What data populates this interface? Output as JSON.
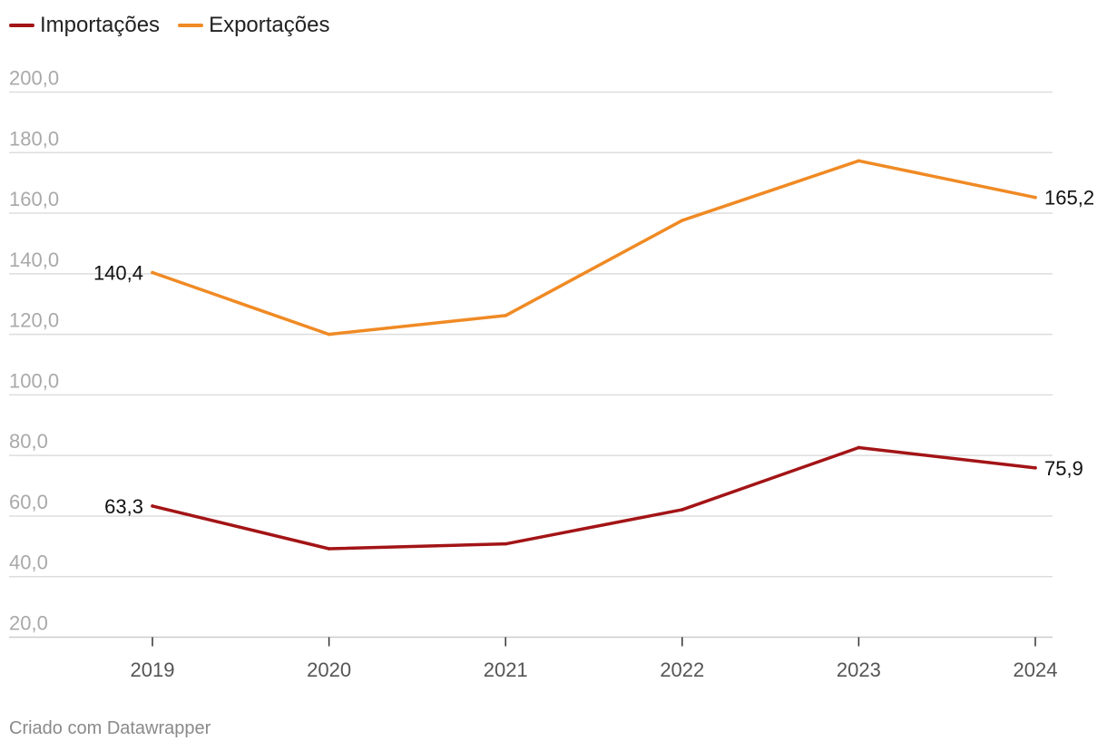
{
  "chart_data": {
    "type": "line",
    "title": "",
    "xlabel": "",
    "ylabel": "",
    "x": [
      "2019",
      "2020",
      "2021",
      "2022",
      "2023",
      "2024"
    ],
    "ylim": [
      20,
      200
    ],
    "yticks": [
      "20,0",
      "40,0",
      "60,0",
      "80,0",
      "100,0",
      "120,0",
      "140,0",
      "160,0",
      "180,0",
      "200,0"
    ],
    "ytick_values": [
      20,
      40,
      60,
      80,
      100,
      120,
      140,
      160,
      180,
      200
    ],
    "grid": true,
    "legend_position": "top-left",
    "series": [
      {
        "name": "Importações",
        "color": "#a31416",
        "values": [
          63.3,
          49.2,
          50.8,
          62.1,
          82.6,
          75.9
        ],
        "labels": {
          "first": "63,3",
          "last": "75,9"
        }
      },
      {
        "name": "Exportações",
        "color": "#f08a24",
        "values": [
          140.4,
          120.0,
          126.2,
          157.6,
          177.3,
          165.2
        ],
        "labels": {
          "first": "140,4",
          "last": "165,2"
        }
      }
    ]
  },
  "legend": {
    "items": [
      {
        "label": "Importações",
        "color": "#a31416"
      },
      {
        "label": "Exportações",
        "color": "#f08a24"
      }
    ]
  },
  "footer": {
    "credit": "Criado com Datawrapper"
  },
  "colors": {
    "grid": "#dddddd",
    "tick_label": "#a9a9a9",
    "x_label": "#555555",
    "value_label": "#111111"
  }
}
